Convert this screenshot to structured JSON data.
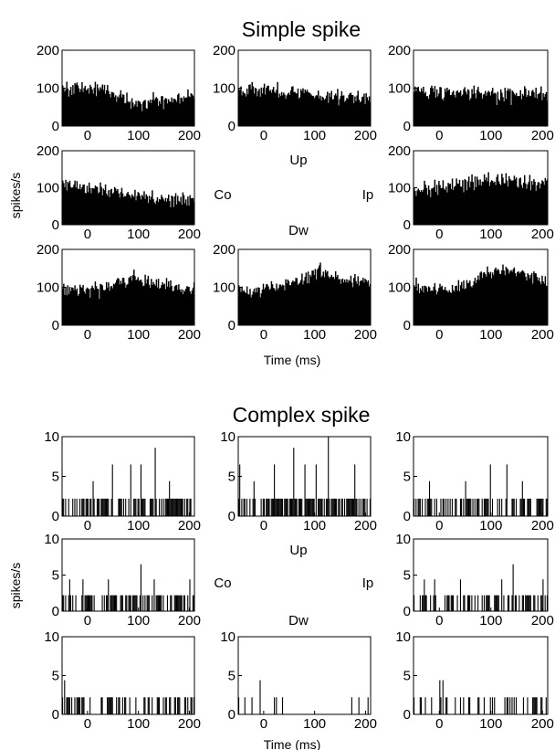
{
  "sections": [
    {
      "title": "Simple spike",
      "ylabel": "spikes/s",
      "xlabel": "Time (ms)",
      "direction_labels": {
        "up": "Up",
        "down": "Dw",
        "contra": "Co",
        "ipsi": "Ip"
      }
    },
    {
      "title": "Complex spike",
      "ylabel": "spikes/s",
      "xlabel": "Time (ms)",
      "direction_labels": {
        "up": "Up",
        "down": "Dw",
        "contra": "Co",
        "ipsi": "Ip"
      }
    }
  ],
  "chart_data": [
    {
      "type": "bar",
      "section": "Simple spike",
      "panels": [
        {
          "position": "top-left",
          "xlim": [
            -50,
            210
          ],
          "ylim": [
            0,
            200
          ],
          "xticks": [
            0,
            100,
            200
          ],
          "yticks": [
            0,
            100,
            200
          ],
          "profile_x": [
            -50,
            0,
            40,
            80,
            150,
            210
          ],
          "profile_y": [
            100,
            100,
            95,
            65,
            65,
            80
          ],
          "noise": 16,
          "bin_ms": 2
        },
        {
          "position": "top-center",
          "xlim": [
            -50,
            210
          ],
          "ylim": [
            0,
            200
          ],
          "xticks": [
            0,
            100,
            200
          ],
          "yticks": [
            0,
            100,
            200
          ],
          "profile_x": [
            -50,
            50,
            120,
            210
          ],
          "profile_y": [
            100,
            90,
            80,
            75
          ],
          "noise": 16,
          "bin_ms": 2
        },
        {
          "position": "top-right",
          "xlim": [
            -50,
            210
          ],
          "ylim": [
            0,
            200
          ],
          "xticks": [
            0,
            100,
            200
          ],
          "yticks": [
            0,
            100,
            200
          ],
          "profile_x": [
            -50,
            60,
            120,
            210
          ],
          "profile_y": [
            95,
            85,
            80,
            85
          ],
          "noise": 16,
          "bin_ms": 2
        },
        {
          "position": "middle-left",
          "xlim": [
            -50,
            210
          ],
          "ylim": [
            0,
            200
          ],
          "xticks": [
            0,
            100,
            200
          ],
          "yticks": [
            0,
            100,
            200
          ],
          "profile_x": [
            -50,
            50,
            150,
            210
          ],
          "profile_y": [
            110,
            90,
            70,
            65
          ],
          "noise": 16,
          "bin_ms": 2
        },
        {
          "position": "middle-right",
          "xlim": [
            -50,
            210
          ],
          "ylim": [
            0,
            200
          ],
          "xticks": [
            0,
            100,
            200
          ],
          "yticks": [
            0,
            100,
            200
          ],
          "profile_x": [
            -50,
            50,
            100,
            150,
            210
          ],
          "profile_y": [
            95,
            110,
            120,
            115,
            110
          ],
          "noise": 18,
          "bin_ms": 2
        },
        {
          "position": "bottom-left",
          "xlim": [
            -50,
            210
          ],
          "ylim": [
            0,
            200
          ],
          "xticks": [
            0,
            100,
            200
          ],
          "yticks": [
            0,
            100,
            200
          ],
          "profile_x": [
            -50,
            20,
            90,
            160,
            210
          ],
          "profile_y": [
            100,
            95,
            125,
            100,
            90
          ],
          "noise": 14,
          "bin_ms": 2
        },
        {
          "position": "bottom-center",
          "xlim": [
            -50,
            210
          ],
          "ylim": [
            0,
            200
          ],
          "xticks": [
            0,
            100,
            200
          ],
          "yticks": [
            0,
            100,
            200
          ],
          "profile_x": [
            -50,
            30,
            110,
            160,
            210
          ],
          "profile_y": [
            95,
            100,
            145,
            120,
            110
          ],
          "noise": 14,
          "bin_ms": 2
        },
        {
          "position": "bottom-right",
          "xlim": [
            -50,
            210
          ],
          "ylim": [
            0,
            200
          ],
          "xticks": [
            0,
            100,
            200
          ],
          "yticks": [
            0,
            100,
            200
          ],
          "profile_x": [
            -50,
            20,
            110,
            160,
            210
          ],
          "profile_y": [
            100,
            95,
            145,
            140,
            110
          ],
          "noise": 16,
          "bin_ms": 2
        }
      ]
    },
    {
      "type": "bar",
      "section": "Complex spike",
      "panels": [
        {
          "position": "top-left",
          "xlim": [
            -50,
            210
          ],
          "ylim": [
            0,
            10
          ],
          "xticks": [
            0,
            100,
            200
          ],
          "yticks": [
            0,
            5,
            10
          ],
          "unit": 2.2,
          "density": 0.55,
          "peaks": [
            [
              10,
              4.4
            ],
            [
              48,
              6.5
            ],
            [
              85,
              6.5
            ],
            [
              104,
              6.5
            ],
            [
              133,
              8.6
            ],
            [
              160,
              4.4
            ]
          ],
          "bin_ms": 2
        },
        {
          "position": "top-center",
          "xlim": [
            -50,
            210
          ],
          "ylim": [
            0,
            10
          ],
          "xticks": [
            0,
            100,
            200
          ],
          "yticks": [
            0,
            5,
            10
          ],
          "unit": 2.2,
          "density": 0.6,
          "peaks": [
            [
              -48,
              6.5
            ],
            [
              -20,
              4.4
            ],
            [
              20,
              6.5
            ],
            [
              58,
              8.6
            ],
            [
              80,
              6.5
            ],
            [
              103,
              6.5
            ],
            [
              127,
              10
            ],
            [
              178,
              6.5
            ]
          ],
          "bin_ms": 2
        },
        {
          "position": "top-right",
          "xlim": [
            -50,
            210
          ],
          "ylim": [
            0,
            10
          ],
          "xticks": [
            0,
            100,
            200
          ],
          "yticks": [
            0,
            5,
            10
          ],
          "unit": 2.2,
          "density": 0.55,
          "peaks": [
            [
              -20,
              4.4
            ],
            [
              50,
              4.4
            ],
            [
              98,
              6.5
            ],
            [
              130,
              6.5
            ],
            [
              160,
              4.4
            ]
          ],
          "bin_ms": 2
        },
        {
          "position": "middle-left",
          "xlim": [
            -50,
            210
          ],
          "ylim": [
            0,
            10
          ],
          "xticks": [
            0,
            100,
            200
          ],
          "yticks": [
            0,
            5,
            10
          ],
          "unit": 2.2,
          "density": 0.45,
          "peaks": [
            [
              -35,
              4.4
            ],
            [
              -10,
              4.4
            ],
            [
              40,
              4.4
            ],
            [
              105,
              6.5
            ],
            [
              130,
              4.4
            ],
            [
              200,
              4.4
            ]
          ],
          "bin_ms": 2
        },
        {
          "position": "middle-right",
          "xlim": [
            -50,
            210
          ],
          "ylim": [
            0,
            10
          ],
          "xticks": [
            0,
            100,
            200
          ],
          "yticks": [
            0,
            5,
            10
          ],
          "unit": 2.2,
          "density": 0.35,
          "peaks": [
            [
              -30,
              4.4
            ],
            [
              -10,
              4.4
            ],
            [
              40,
              4.4
            ],
            [
              120,
              4.4
            ],
            [
              142,
              6.5
            ],
            [
              200,
              4.4
            ]
          ],
          "bin_ms": 2
        },
        {
          "position": "bottom-left",
          "xlim": [
            -50,
            210
          ],
          "ylim": [
            0,
            10
          ],
          "xticks": [
            0,
            100,
            200
          ],
          "yticks": [
            0,
            5,
            10
          ],
          "unit": 2.2,
          "density": 0.35,
          "peaks": [
            [
              -45,
              4.4
            ]
          ],
          "bin_ms": 2
        },
        {
          "position": "bottom-center",
          "xlim": [
            -50,
            210
          ],
          "ylim": [
            0,
            10
          ],
          "xticks": [
            0,
            100,
            200
          ],
          "yticks": [
            0,
            5,
            10
          ],
          "unit": 2.2,
          "density": 0.12,
          "peaks": [
            [
              -8,
              4.4
            ]
          ],
          "bin_ms": 2
        },
        {
          "position": "bottom-right",
          "xlim": [
            -50,
            210
          ],
          "ylim": [
            0,
            10
          ],
          "xticks": [
            0,
            100,
            200
          ],
          "yticks": [
            0,
            5,
            10
          ],
          "unit": 2.2,
          "density": 0.22,
          "peaks": [
            [
              0,
              4.4
            ],
            [
              6,
              4.4
            ]
          ],
          "bin_ms": 2
        }
      ]
    }
  ]
}
